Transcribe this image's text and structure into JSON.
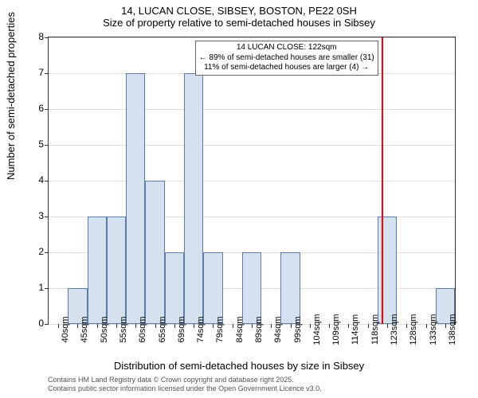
{
  "titles": {
    "main": "14, LUCAN CLOSE, SIBSEY, BOSTON, PE22 0SH",
    "sub": "Size of property relative to semi-detached houses in Sibsey"
  },
  "chart": {
    "type": "histogram",
    "ylabel": "Number of semi-detached properties",
    "xlabel": "Distribution of semi-detached houses by size in Sibsey",
    "background_color": "#ffffff",
    "grid_color": "#dddddd",
    "bar_fill": "#d6e1ef",
    "bar_border": "#5b7ca8",
    "axis_color": "#333333",
    "ylim": [
      0,
      8
    ],
    "ytick_step": 1,
    "yticks": [
      0,
      1,
      2,
      3,
      4,
      5,
      6,
      7,
      8
    ],
    "xticks": [
      "40sqm",
      "45sqm",
      "50sqm",
      "55sqm",
      "60sqm",
      "65sqm",
      "69sqm",
      "74sqm",
      "79sqm",
      "84sqm",
      "89sqm",
      "94sqm",
      "99sqm",
      "104sqm",
      "109sqm",
      "114sqm",
      "118sqm",
      "123sqm",
      "128sqm",
      "133sqm",
      "138sqm"
    ],
    "bars": [
      {
        "x": "40sqm",
        "v": 0
      },
      {
        "x": "45sqm",
        "v": 1
      },
      {
        "x": "50sqm",
        "v": 3
      },
      {
        "x": "55sqm",
        "v": 3
      },
      {
        "x": "60sqm",
        "v": 7
      },
      {
        "x": "65sqm",
        "v": 4
      },
      {
        "x": "69sqm",
        "v": 2
      },
      {
        "x": "74sqm",
        "v": 7
      },
      {
        "x": "79sqm",
        "v": 2
      },
      {
        "x": "84sqm",
        "v": 0
      },
      {
        "x": "89sqm",
        "v": 2
      },
      {
        "x": "94sqm",
        "v": 0
      },
      {
        "x": "99sqm",
        "v": 2
      },
      {
        "x": "104sqm",
        "v": 0
      },
      {
        "x": "109sqm",
        "v": 0
      },
      {
        "x": "114sqm",
        "v": 0
      },
      {
        "x": "118sqm",
        "v": 0
      },
      {
        "x": "123sqm",
        "v": 3
      },
      {
        "x": "128sqm",
        "v": 0
      },
      {
        "x": "133sqm",
        "v": 0
      },
      {
        "x": "138sqm",
        "v": 1
      }
    ],
    "marker_line": {
      "x_index": 17,
      "color": "#ff0000"
    },
    "annotation": {
      "line1": "14 LUCAN CLOSE: 122sqm",
      "line2": "← 89% of semi-detached houses are smaller (31)",
      "line3": "11% of semi-detached houses are larger (4) →"
    }
  },
  "footer": {
    "line1": "Contains HM Land Registry data © Crown copyright and database right 2025.",
    "line2": "Contains public sector information licensed under the Open Government Licence v3.0."
  }
}
